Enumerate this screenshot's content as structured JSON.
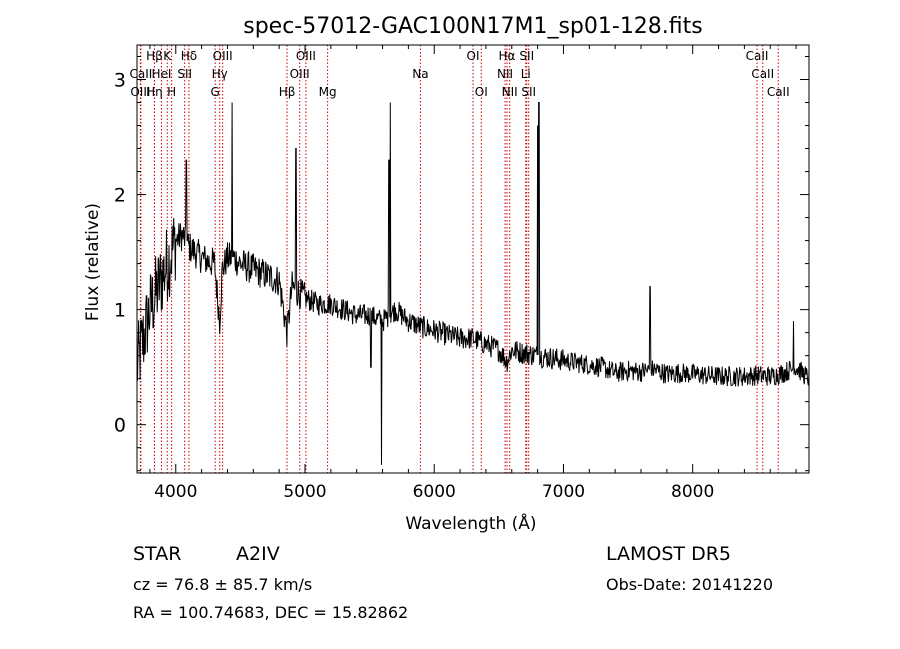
{
  "chart_data": {
    "type": "line",
    "title": "spec-57012-GAC100N17M1_sp01-128.fits",
    "xlabel": "Wavelength (Å)",
    "ylabel": "Flux (relative)",
    "xlim": [
      3700,
      8900
    ],
    "ylim": [
      -0.42,
      3.3
    ],
    "xticks": [
      4000,
      5000,
      6000,
      7000,
      8000
    ],
    "yticks": [
      0,
      1,
      2,
      3
    ],
    "line_color": "#000000",
    "marker_color": "#cc0000",
    "lines": [
      {
        "label": "Hβ",
        "x": 3835,
        "row": 0
      },
      {
        "label": "CaII",
        "x": 3730,
        "row": 1
      },
      {
        "label": "OIII",
        "x": 3726,
        "row": 2
      },
      {
        "label": "Hη",
        "x": 3835,
        "row": 2
      },
      {
        "label": "HeI",
        "x": 3889,
        "row": 1
      },
      {
        "label": "K",
        "x": 3934,
        "row": 0
      },
      {
        "label": "H",
        "x": 3968,
        "row": 2
      },
      {
        "label": "Hδ",
        "x": 4102,
        "row": 0
      },
      {
        "label": "SII",
        "x": 4069,
        "row": 1
      },
      {
        "label": "OIII",
        "x": 4363,
        "row": 0
      },
      {
        "label": "Hγ",
        "x": 4340,
        "row": 1
      },
      {
        "label": "G",
        "x": 4305,
        "row": 2
      },
      {
        "label": "Hβ",
        "x": 4861,
        "row": 2
      },
      {
        "label": "OIII",
        "x": 5007,
        "row": 0
      },
      {
        "label": "OIII",
        "x": 4959,
        "row": 1
      },
      {
        "label": "Mg",
        "x": 5175,
        "row": 2
      },
      {
        "label": "Na",
        "x": 5893,
        "row": 1
      },
      {
        "label": "OI",
        "x": 6300,
        "row": 0
      },
      {
        "label": "OI",
        "x": 6364,
        "row": 2
      },
      {
        "label": "Hα",
        "x": 6563,
        "row": 0
      },
      {
        "label": "NII",
        "x": 6548,
        "row": 1
      },
      {
        "label": "NII",
        "x": 6584,
        "row": 2
      },
      {
        "label": "SII",
        "x": 6716,
        "row": 0
      },
      {
        "label": "Li",
        "x": 6708,
        "row": 1
      },
      {
        "label": "SII",
        "x": 6731,
        "row": 2
      },
      {
        "label": "CaII",
        "x": 8498,
        "row": 0
      },
      {
        "label": "CaII",
        "x": 8542,
        "row": 1
      },
      {
        "label": "CaII",
        "x": 8662,
        "row": 2
      }
    ],
    "spectrum": {
      "x": [
        3700,
        3750,
        3800,
        3850,
        3900,
        3950,
        4000,
        4050,
        4100,
        4150,
        4200,
        4250,
        4300,
        4340,
        4360,
        4400,
        4450,
        4500,
        4600,
        4700,
        4800,
        4861,
        4900,
        4950,
        5000,
        5100,
        5200,
        5300,
        5400,
        5500,
        5600,
        5650,
        5700,
        5800,
        5900,
        6000,
        6100,
        6200,
        6300,
        6400,
        6500,
        6563,
        6600,
        6700,
        6800,
        6900,
        7000,
        7100,
        7200,
        7300,
        7400,
        7500,
        7600,
        7700,
        7800,
        7900,
        8000,
        8100,
        8200,
        8300,
        8400,
        8500,
        8600,
        8700,
        8800,
        8900
      ],
      "y": [
        0.5,
        0.75,
        1.0,
        1.15,
        1.3,
        1.45,
        1.6,
        1.65,
        1.55,
        1.5,
        1.45,
        1.42,
        1.4,
        0.9,
        1.35,
        1.45,
        1.45,
        1.4,
        1.35,
        1.3,
        1.25,
        0.8,
        1.2,
        1.15,
        1.1,
        1.05,
        1.05,
        1.0,
        0.95,
        0.95,
        0.9,
        0.95,
        1.0,
        0.9,
        0.85,
        0.82,
        0.78,
        0.75,
        0.75,
        0.7,
        0.65,
        0.55,
        0.65,
        0.62,
        0.6,
        0.58,
        0.56,
        0.54,
        0.52,
        0.5,
        0.45,
        0.47,
        0.46,
        0.48,
        0.44,
        0.45,
        0.44,
        0.43,
        0.42,
        0.42,
        0.42,
        0.43,
        0.42,
        0.45,
        0.5,
        0.4
      ]
    },
    "spikes": [
      {
        "x": 4435,
        "y": 2.8
      },
      {
        "x": 4082,
        "y": 2.3
      },
      {
        "x": 4930,
        "y": 2.4
      },
      {
        "x": 5660,
        "y": 2.8
      },
      {
        "x": 5650,
        "y": 2.3
      },
      {
        "x": 6810,
        "y": 2.8
      },
      {
        "x": 6800,
        "y": 2.6
      },
      {
        "x": 7670,
        "y": 1.2
      },
      {
        "x": 8780,
        "y": 0.9
      }
    ],
    "dips": [
      {
        "x": 5592,
        "y": -0.35
      },
      {
        "x": 5510,
        "y": 0.5
      }
    ]
  },
  "footer": {
    "class": "STAR",
    "subclass": "A2IV",
    "survey": "LAMOST  DR5",
    "cz": "cz = 76.8 ± 85.7 km/s",
    "obs_date": "Obs-Date: 20141220",
    "coords": "RA = 100.74683, DEC =  15.82862"
  }
}
